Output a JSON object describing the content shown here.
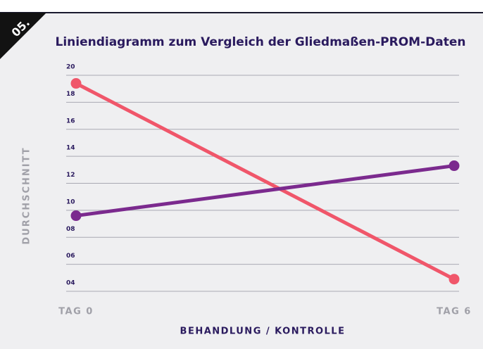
{
  "chart_data": {
    "type": "line",
    "badge": "05.",
    "title": "Liniendiagramm zum Vergleich der Gliedmaßen-PROM-Daten",
    "xlabel": "BEHANDLUNG / KONTROLLE",
    "ylabel": "DURCHSCHNITT",
    "categories": [
      "TAG 0",
      "TAG 6"
    ],
    "series": [
      {
        "color": "#f0566a",
        "values": [
          19.4,
          4.9
        ]
      },
      {
        "color": "#7b2a8e",
        "values": [
          9.6,
          13.3
        ]
      }
    ],
    "ylim": [
      4,
      20
    ],
    "yticks": [
      {
        "value": 4,
        "label": "04"
      },
      {
        "value": 6,
        "label": "06"
      },
      {
        "value": 8,
        "label": "08"
      },
      10,
      12,
      14,
      16,
      18,
      20
    ],
    "grid": true
  }
}
